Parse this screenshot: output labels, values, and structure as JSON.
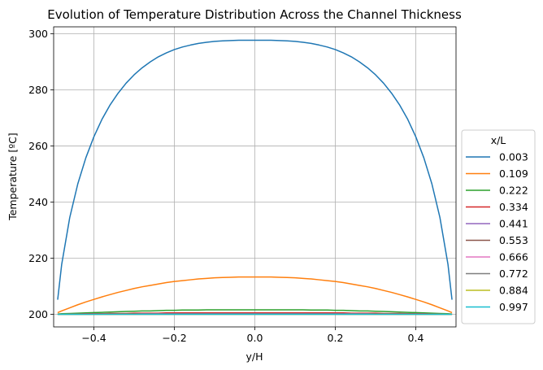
{
  "chart_data": {
    "type": "line",
    "title": "Evolution of Temperature Distribution Across the Channel Thickness",
    "xlabel": "y/H",
    "ylabel": "Temperature [ºC]",
    "xlim": [
      -0.5,
      0.5
    ],
    "ylim": [
      195.5,
      302.5
    ],
    "xticks": [
      -0.4,
      -0.2,
      0.0,
      0.2,
      0.4
    ],
    "xtick_labels": [
      "−0.4",
      "−0.2",
      "0.0",
      "0.2",
      "0.4"
    ],
    "yticks": [
      200,
      220,
      240,
      260,
      280,
      300
    ],
    "ytick_labels": [
      "200",
      "220",
      "240",
      "260",
      "280",
      "300"
    ],
    "grid": true,
    "legend": {
      "title": "x/L",
      "placement": "outside right"
    },
    "x": [
      -0.49,
      -0.48,
      -0.46,
      -0.44,
      -0.42,
      -0.4,
      -0.38,
      -0.36,
      -0.34,
      -0.32,
      -0.3,
      -0.28,
      -0.26,
      -0.24,
      -0.22,
      -0.2,
      -0.18,
      -0.16,
      -0.14,
      -0.12,
      -0.1,
      -0.08,
      -0.06,
      -0.04,
      -0.02,
      0.0,
      0.02,
      0.04,
      0.06,
      0.08,
      0.1,
      0.12,
      0.14,
      0.16,
      0.18,
      0.2,
      0.22,
      0.24,
      0.26,
      0.28,
      0.3,
      0.32,
      0.34,
      0.36,
      0.38,
      0.4,
      0.42,
      0.44,
      0.46,
      0.48,
      0.49
    ],
    "series": [
      {
        "name": "0.003",
        "color": "#1f77b4",
        "values": [
          205.2,
          217.8,
          234.5,
          246.5,
          255.8,
          263.3,
          269.5,
          274.6,
          278.8,
          282.4,
          285.4,
          287.9,
          290.0,
          291.8,
          293.2,
          294.4,
          295.3,
          296.0,
          296.6,
          297.0,
          297.3,
          297.5,
          297.6,
          297.7,
          297.7,
          297.7,
          297.7,
          297.7,
          297.6,
          297.5,
          297.3,
          297.0,
          296.6,
          296.0,
          295.3,
          294.4,
          293.2,
          291.8,
          290.0,
          287.9,
          285.4,
          282.4,
          278.8,
          274.6,
          269.5,
          263.3,
          255.8,
          246.5,
          234.5,
          217.8,
          205.2
        ]
      },
      {
        "name": "0.109",
        "color": "#ff7f0e",
        "values": [
          200.6,
          201.2,
          202.3,
          203.4,
          204.4,
          205.3,
          206.2,
          207.0,
          207.8,
          208.5,
          209.2,
          209.8,
          210.3,
          210.8,
          211.3,
          211.7,
          212.0,
          212.3,
          212.6,
          212.8,
          213.0,
          213.1,
          213.2,
          213.3,
          213.3,
          213.3,
          213.3,
          213.3,
          213.2,
          213.1,
          213.0,
          212.8,
          212.6,
          212.3,
          212.0,
          211.7,
          211.3,
          210.8,
          210.3,
          209.8,
          209.2,
          208.5,
          207.8,
          207.0,
          206.2,
          205.3,
          204.4,
          203.4,
          202.3,
          201.2,
          200.6
        ]
      },
      {
        "name": "0.222",
        "color": "#2ca02c",
        "values": [
          200.1,
          200.2,
          200.3,
          200.4,
          200.5,
          200.6,
          200.7,
          200.8,
          200.9,
          201.0,
          201.1,
          201.2,
          201.2,
          201.3,
          201.4,
          201.4,
          201.5,
          201.5,
          201.5,
          201.6,
          201.6,
          201.6,
          201.6,
          201.6,
          201.6,
          201.6,
          201.6,
          201.6,
          201.6,
          201.6,
          201.6,
          201.6,
          201.5,
          201.5,
          201.5,
          201.4,
          201.4,
          201.3,
          201.2,
          201.2,
          201.1,
          201.0,
          200.9,
          200.8,
          200.7,
          200.6,
          200.5,
          200.4,
          200.3,
          200.2,
          200.1
        ]
      },
      {
        "name": "0.334",
        "color": "#d62728",
        "values": [
          200.0,
          200.0,
          200.1,
          200.1,
          200.2,
          200.2,
          200.2,
          200.3,
          200.3,
          200.3,
          200.4,
          200.4,
          200.4,
          200.4,
          200.5,
          200.5,
          200.5,
          200.5,
          200.5,
          200.5,
          200.5,
          200.5,
          200.5,
          200.5,
          200.5,
          200.5,
          200.5,
          200.5,
          200.5,
          200.5,
          200.5,
          200.5,
          200.5,
          200.5,
          200.5,
          200.5,
          200.5,
          200.4,
          200.4,
          200.4,
          200.4,
          200.3,
          200.3,
          200.3,
          200.2,
          200.2,
          200.2,
          200.1,
          200.1,
          200.0,
          200.0
        ]
      },
      {
        "name": "0.441",
        "color": "#9467bd",
        "values": [
          200.0,
          200.0,
          200.0,
          200.0,
          200.1,
          200.1,
          200.1,
          200.1,
          200.1,
          200.1,
          200.1,
          200.2,
          200.2,
          200.2,
          200.2,
          200.2,
          200.2,
          200.2,
          200.2,
          200.2,
          200.2,
          200.2,
          200.2,
          200.2,
          200.2,
          200.2,
          200.2,
          200.2,
          200.2,
          200.2,
          200.2,
          200.2,
          200.2,
          200.2,
          200.2,
          200.2,
          200.2,
          200.2,
          200.2,
          200.2,
          200.1,
          200.1,
          200.1,
          200.1,
          200.1,
          200.1,
          200.1,
          200.0,
          200.0,
          200.0,
          200.0
        ]
      },
      {
        "name": "0.553",
        "color": "#8c564b",
        "values": [
          200.0,
          200.0,
          200.0,
          200.0,
          200.0,
          200.0,
          200.0,
          200.0,
          200.1,
          200.1,
          200.1,
          200.1,
          200.1,
          200.1,
          200.1,
          200.1,
          200.1,
          200.1,
          200.1,
          200.1,
          200.1,
          200.1,
          200.1,
          200.1,
          200.1,
          200.1,
          200.1,
          200.1,
          200.1,
          200.1,
          200.1,
          200.1,
          200.1,
          200.1,
          200.1,
          200.1,
          200.1,
          200.1,
          200.1,
          200.1,
          200.1,
          200.1,
          200.1,
          200.0,
          200.0,
          200.0,
          200.0,
          200.0,
          200.0,
          200.0,
          200.0
        ]
      },
      {
        "name": "0.666",
        "color": "#e377c2",
        "values": [
          200.0,
          200.0,
          200.0,
          200.0,
          200.0,
          200.0,
          200.0,
          200.0,
          200.0,
          200.0,
          200.0,
          200.0,
          200.0,
          200.0,
          200.0,
          200.0,
          200.0,
          200.0,
          200.0,
          200.0,
          200.0,
          200.0,
          200.0,
          200.0,
          200.0,
          200.0,
          200.0,
          200.0,
          200.0,
          200.0,
          200.0,
          200.0,
          200.0,
          200.0,
          200.0,
          200.0,
          200.0,
          200.0,
          200.0,
          200.0,
          200.0,
          200.0,
          200.0,
          200.0,
          200.0,
          200.0,
          200.0,
          200.0,
          200.0,
          200.0,
          200.0
        ]
      },
      {
        "name": "0.772",
        "color": "#7f7f7f",
        "values": [
          200.0,
          200.0,
          200.0,
          200.0,
          200.0,
          200.0,
          200.0,
          200.0,
          200.0,
          200.0,
          200.0,
          200.0,
          200.0,
          200.0,
          200.0,
          200.0,
          200.0,
          200.0,
          200.0,
          200.0,
          200.0,
          200.0,
          200.0,
          200.0,
          200.0,
          200.0,
          200.0,
          200.0,
          200.0,
          200.0,
          200.0,
          200.0,
          200.0,
          200.0,
          200.0,
          200.0,
          200.0,
          200.0,
          200.0,
          200.0,
          200.0,
          200.0,
          200.0,
          200.0,
          200.0,
          200.0,
          200.0,
          200.0,
          200.0,
          200.0,
          200.0
        ]
      },
      {
        "name": "0.884",
        "color": "#bcbd22",
        "values": [
          200.0,
          200.0,
          200.0,
          200.0,
          200.0,
          200.0,
          200.0,
          200.0,
          200.0,
          200.0,
          200.0,
          200.0,
          200.0,
          200.0,
          200.0,
          200.0,
          200.0,
          200.0,
          200.0,
          200.0,
          200.0,
          200.0,
          200.0,
          200.0,
          200.0,
          200.0,
          200.0,
          200.0,
          200.0,
          200.0,
          200.0,
          200.0,
          200.0,
          200.0,
          200.0,
          200.0,
          200.0,
          200.0,
          200.0,
          200.0,
          200.0,
          200.0,
          200.0,
          200.0,
          200.0,
          200.0,
          200.0,
          200.0,
          200.0,
          200.0,
          200.0
        ]
      },
      {
        "name": "0.997",
        "color": "#17becf",
        "values": [
          200.0,
          200.0,
          200.0,
          200.0,
          200.0,
          200.0,
          200.0,
          200.0,
          200.0,
          200.0,
          200.0,
          200.0,
          200.0,
          200.0,
          200.0,
          200.0,
          200.0,
          200.0,
          200.0,
          200.0,
          200.0,
          200.0,
          200.0,
          200.0,
          200.0,
          200.0,
          200.0,
          200.0,
          200.0,
          200.0,
          200.0,
          200.0,
          200.0,
          200.0,
          200.0,
          200.0,
          200.0,
          200.0,
          200.0,
          200.0,
          200.0,
          200.0,
          200.0,
          200.0,
          200.0,
          200.0,
          200.0,
          200.0,
          200.0,
          200.0,
          200.0
        ]
      }
    ]
  }
}
